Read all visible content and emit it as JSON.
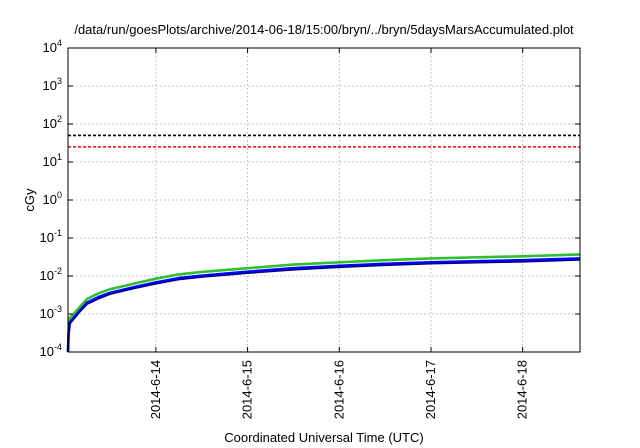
{
  "chart_data": {
    "type": "line",
    "title": "/data/run/goesPlots/archive/2014-06-18/15:00/bryn/../bryn/5daysMarsAccumulated.plot",
    "xlabel": "Coordinated Universal Time (UTC)",
    "ylabel": "cGy",
    "yscale": "log",
    "xlim": [
      "2014-06-13T01:00",
      "2014-06-18T15:00"
    ],
    "ylim": [
      0.0001,
      10000
    ],
    "grid": true,
    "x_ticks": [
      "2014-6-14",
      "2014-6-15",
      "2014-6-16",
      "2014-6-17",
      "2014-6-18"
    ],
    "y_ticks": [
      {
        "base": "10",
        "exp": "-4",
        "value": 0.0001
      },
      {
        "base": "10",
        "exp": "-3",
        "value": 0.001
      },
      {
        "base": "10",
        "exp": "-2",
        "value": 0.01
      },
      {
        "base": "10",
        "exp": "-1",
        "value": 0.1
      },
      {
        "base": "10",
        "exp": "0",
        "value": 1
      },
      {
        "base": "10",
        "exp": "1",
        "value": 10
      },
      {
        "base": "10",
        "exp": "2",
        "value": 100
      },
      {
        "base": "10",
        "exp": "3",
        "value": 1000
      },
      {
        "base": "10",
        "exp": "4",
        "value": 10000
      }
    ],
    "reference_lines": [
      {
        "value": 50,
        "color": "#000000",
        "style": "dashed"
      },
      {
        "value": 25,
        "color": "#ff0000",
        "style": "dashed"
      }
    ],
    "series": [
      {
        "color": "#30c030",
        "x": [
          "2014-06-13T01:00",
          "2014-06-13T01:10",
          "2014-06-13T01:30",
          "2014-06-13T02:30",
          "2014-06-13T04:00",
          "2014-06-13T06:00",
          "2014-06-13T09:00",
          "2014-06-13T12:00",
          "2014-06-13T18:00",
          "2014-06-14T00:00",
          "2014-06-14T06:00",
          "2014-06-14T12:00",
          "2014-06-15T00:00",
          "2014-06-15T12:00",
          "2014-06-16T00:00",
          "2014-06-16T12:00",
          "2014-06-17T00:00",
          "2014-06-17T12:00",
          "2014-06-18T00:00",
          "2014-06-18T15:00"
        ],
        "y": [
          0.0001,
          0.0004,
          0.0008,
          0.001,
          0.0015,
          0.0025,
          0.0035,
          0.0045,
          0.0062,
          0.0085,
          0.011,
          0.0128,
          0.016,
          0.02,
          0.023,
          0.026,
          0.029,
          0.031,
          0.033,
          0.037
        ]
      },
      {
        "color": "#0000ff",
        "x": [
          "2014-06-13T01:00",
          "2014-06-13T01:10",
          "2014-06-13T01:30",
          "2014-06-13T02:30",
          "2014-06-13T04:00",
          "2014-06-13T06:00",
          "2014-06-13T09:00",
          "2014-06-13T12:00",
          "2014-06-13T18:00",
          "2014-06-14T00:00",
          "2014-06-14T06:00",
          "2014-06-14T12:00",
          "2014-06-15T00:00",
          "2014-06-15T12:00",
          "2014-06-16T00:00",
          "2014-06-16T12:00",
          "2014-06-17T00:00",
          "2014-06-17T12:00",
          "2014-06-18T00:00",
          "2014-06-18T15:00"
        ],
        "y": [
          0.0001,
          0.0003,
          0.0006,
          0.0008,
          0.0012,
          0.002,
          0.0028,
          0.0036,
          0.005,
          0.0068,
          0.0088,
          0.0102,
          0.013,
          0.016,
          0.0185,
          0.021,
          0.023,
          0.0245,
          0.026,
          0.029
        ]
      },
      {
        "color": "#000080",
        "x": [
          "2014-06-13T01:00",
          "2014-06-13T01:10",
          "2014-06-13T01:30",
          "2014-06-13T02:30",
          "2014-06-13T04:00",
          "2014-06-13T06:00",
          "2014-06-13T09:00",
          "2014-06-13T12:00",
          "2014-06-13T18:00",
          "2014-06-14T00:00",
          "2014-06-14T06:00",
          "2014-06-14T12:00",
          "2014-06-15T00:00",
          "2014-06-15T12:00",
          "2014-06-16T00:00",
          "2014-06-16T12:00",
          "2014-06-17T00:00",
          "2014-06-17T12:00",
          "2014-06-18T00:00",
          "2014-06-18T15:00"
        ],
        "y": [
          0.0001,
          0.00027,
          0.00055,
          0.00072,
          0.0011,
          0.0018,
          0.0025,
          0.0033,
          0.0046,
          0.0062,
          0.008,
          0.0093,
          0.0118,
          0.0145,
          0.0168,
          0.019,
          0.021,
          0.0222,
          0.0235,
          0.0262
        ]
      }
    ]
  }
}
